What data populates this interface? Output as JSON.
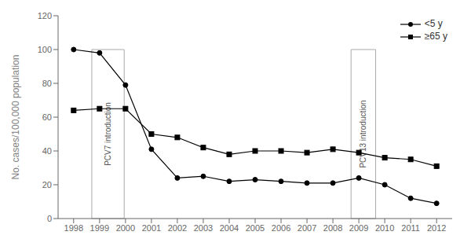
{
  "chart_data": {
    "type": "line",
    "x": [
      1998,
      1999,
      2000,
      2001,
      2002,
      2003,
      2004,
      2005,
      2006,
      2007,
      2008,
      2009,
      2010,
      2011,
      2012
    ],
    "series": [
      {
        "name": "<5 y",
        "color": "#000000",
        "marker": "circle",
        "values": [
          100,
          98,
          79,
          41,
          24,
          25,
          22,
          23,
          22,
          21,
          21,
          24,
          20,
          12,
          9
        ]
      },
      {
        "name": "≥65 y",
        "color": "#000000",
        "marker": "square",
        "values": [
          64,
          65,
          65,
          50,
          48,
          42,
          38,
          40,
          40,
          39,
          41,
          39,
          36,
          35,
          31
        ]
      }
    ],
    "ylabel": "No. cases/100,000 population",
    "xlim": [
      1997.4,
      2012.6
    ],
    "xticks": [
      1998,
      1999,
      2000,
      2001,
      2002,
      2003,
      2004,
      2005,
      2006,
      2007,
      2008,
      2009,
      2010,
      2011,
      2012
    ],
    "ylim": [
      0,
      120
    ],
    "yticks": [
      0,
      20,
      40,
      60,
      80,
      100,
      120
    ],
    "annotations": [
      {
        "text": "PCV7 introduction",
        "x": [
          1998.7,
          1999.95
        ],
        "y": [
          0,
          100
        ],
        "color": "#aaaaaa"
      },
      {
        "text": "PCV13 introduction",
        "x": [
          2008.7,
          2009.65
        ],
        "y": [
          0,
          100
        ],
        "color": "#aaaaaa"
      }
    ],
    "legend": "upper right",
    "grid": false
  }
}
